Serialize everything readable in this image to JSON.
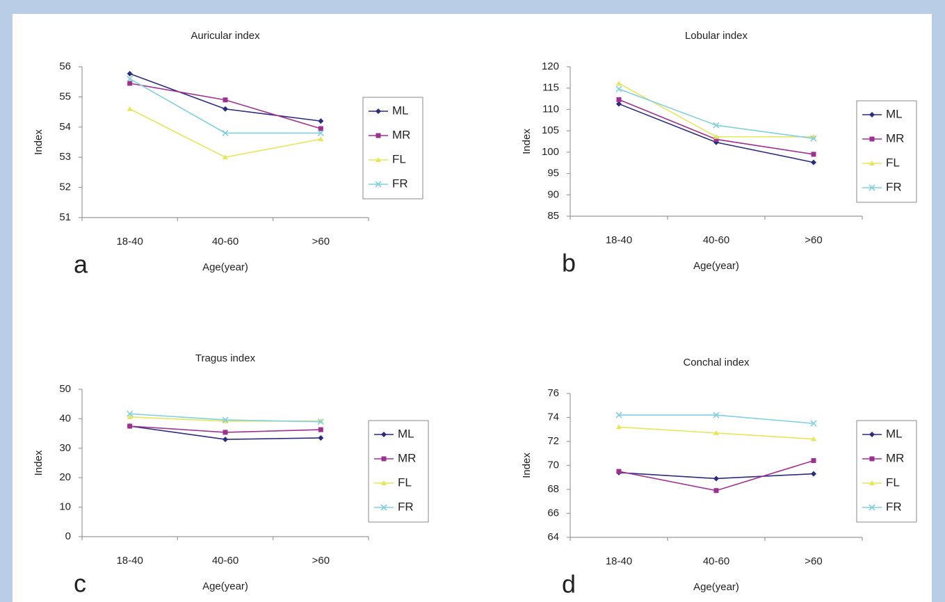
{
  "chart_data": [
    {
      "type": "line",
      "title": "Auricular index",
      "xlabel": "Age(year)",
      "ylabel": "Index",
      "panel_label": "a",
      "categories": [
        "18-40",
        "40-60",
        ">60"
      ],
      "ylim": [
        51,
        56
      ],
      "yticks": [
        51,
        52,
        53,
        54,
        55,
        56
      ],
      "series": [
        {
          "name": "ML",
          "color": "#2b2b80",
          "values": [
            55.77,
            54.6,
            54.2
          ]
        },
        {
          "name": "MR",
          "color": "#a0308f",
          "values": [
            55.45,
            54.9,
            53.95
          ]
        },
        {
          "name": "FL",
          "color": "#e6e65a",
          "values": [
            54.6,
            53.0,
            53.6
          ]
        },
        {
          "name": "FR",
          "color": "#80d0e0",
          "values": [
            55.6,
            53.8,
            53.8
          ]
        }
      ]
    },
    {
      "type": "line",
      "title": "Lobular index",
      "xlabel": "Age(year)",
      "ylabel": "Index",
      "panel_label": "b",
      "categories": [
        "18-40",
        "40-60",
        ">60"
      ],
      "ylim": [
        85,
        120
      ],
      "yticks": [
        85,
        90,
        95,
        100,
        105,
        110,
        115,
        120
      ],
      "series": [
        {
          "name": "ML",
          "color": "#2b2b80",
          "values": [
            111.3,
            102.3,
            97.6
          ]
        },
        {
          "name": "MR",
          "color": "#a0308f",
          "values": [
            112.3,
            103.0,
            99.5
          ]
        },
        {
          "name": "FL",
          "color": "#e6e65a",
          "values": [
            116.1,
            103.6,
            103.6
          ]
        },
        {
          "name": "FR",
          "color": "#80d0e0",
          "values": [
            114.8,
            106.3,
            103.2
          ]
        }
      ]
    },
    {
      "type": "line",
      "title": "Tragus index",
      "xlabel": "Age(year)",
      "ylabel": "Index",
      "panel_label": "c",
      "categories": [
        "18-40",
        "40-60",
        ">60"
      ],
      "ylim": [
        0,
        50
      ],
      "yticks": [
        0,
        10,
        20,
        30,
        40,
        50
      ],
      "series": [
        {
          "name": "ML",
          "color": "#2b2b80",
          "values": [
            37.5,
            33.0,
            33.5
          ]
        },
        {
          "name": "MR",
          "color": "#a0308f",
          "values": [
            37.5,
            35.4,
            36.3
          ]
        },
        {
          "name": "FL",
          "color": "#e6e65a",
          "values": [
            40.6,
            39.2,
            39.2
          ]
        },
        {
          "name": "FR",
          "color": "#80d0e0",
          "values": [
            41.7,
            39.6,
            39.0
          ]
        }
      ]
    },
    {
      "type": "line",
      "title": "Conchal index",
      "xlabel": "Age(year)",
      "ylabel": "Index",
      "panel_label": "d",
      "categories": [
        "18-40",
        "40-60",
        ">60"
      ],
      "ylim": [
        64,
        76
      ],
      "yticks": [
        64,
        66,
        68,
        70,
        72,
        74,
        76
      ],
      "series": [
        {
          "name": "ML",
          "color": "#2b2b80",
          "values": [
            69.4,
            68.9,
            69.3
          ]
        },
        {
          "name": "MR",
          "color": "#a0308f",
          "values": [
            69.5,
            67.9,
            70.4
          ]
        },
        {
          "name": "FL",
          "color": "#e6e65a",
          "values": [
            73.2,
            72.7,
            72.2
          ]
        },
        {
          "name": "FR",
          "color": "#80d0e0",
          "values": [
            74.2,
            74.2,
            73.5
          ]
        }
      ]
    }
  ]
}
